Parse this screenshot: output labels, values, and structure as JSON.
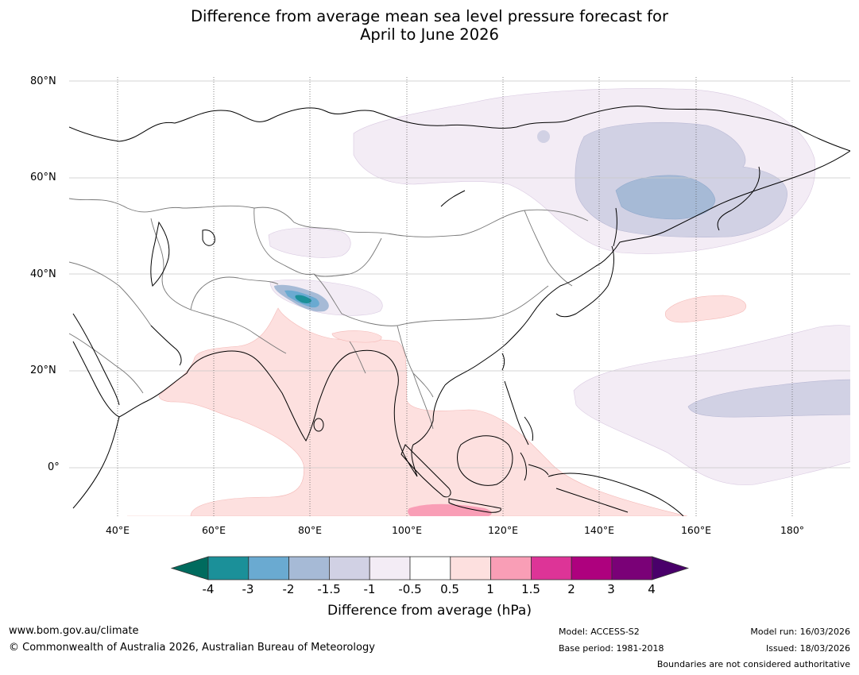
{
  "title": {
    "line1": "Difference from average mean sea level pressure forecast for",
    "line2": "April to June 2026"
  },
  "map": {
    "lat_labels": [
      "80°N",
      "60°N",
      "40°N",
      "20°N",
      "0°"
    ],
    "lon_labels": [
      "40°E",
      "60°E",
      "80°E",
      "100°E",
      "120°E",
      "140°E",
      "160°E",
      "180°"
    ],
    "lat_range": [
      -10,
      80
    ],
    "lon_range": [
      30,
      192
    ],
    "anomaly_regions": [
      {
        "name": "siberia-positive-weak",
        "category": "-1 to -0.5"
      },
      {
        "name": "east-siberia-negative",
        "category": "-1.5 to -1"
      },
      {
        "name": "amur-negative",
        "category": "-2 to -1.5"
      },
      {
        "name": "tibet-negative",
        "category": "-3 to -2"
      },
      {
        "name": "indian-ocean-positive",
        "category": "0.5 to 1"
      },
      {
        "name": "java-sea-positive",
        "category": "1 to 1.5"
      },
      {
        "name": "north-pacific-positive",
        "category": "0.5 to 1"
      },
      {
        "name": "tropical-pacific-negative",
        "category": "-1.5 to -1"
      }
    ]
  },
  "colorbar": {
    "colors": [
      "#006b5e",
      "#1b9099",
      "#6aaad1",
      "#a6bad6",
      "#d1d1e4",
      "#f3ecf5",
      "#ffffff",
      "#fde0df",
      "#f99eb6",
      "#dd3497",
      "#ae017e",
      "#7a0177",
      "#49006a"
    ],
    "ticks": [
      "-4",
      "-3",
      "-2",
      "-1.5",
      "-1",
      "-0.5",
      "0.5",
      "1",
      "1.5",
      "2",
      "3",
      "4"
    ],
    "label": "Difference from average (hPa)"
  },
  "footer": {
    "website": "www.bom.gov.au/climate",
    "copyright": "© Commonwealth of Australia 2026, Australian Bureau of Meteorology",
    "model": "Model: ACCESS-S2",
    "base_period": "Base period: 1981-2018",
    "model_run": "Model run: 16/03/2026",
    "issued": "Issued: 18/03/2026",
    "disclaimer": "Boundaries are not considered authoritative"
  }
}
